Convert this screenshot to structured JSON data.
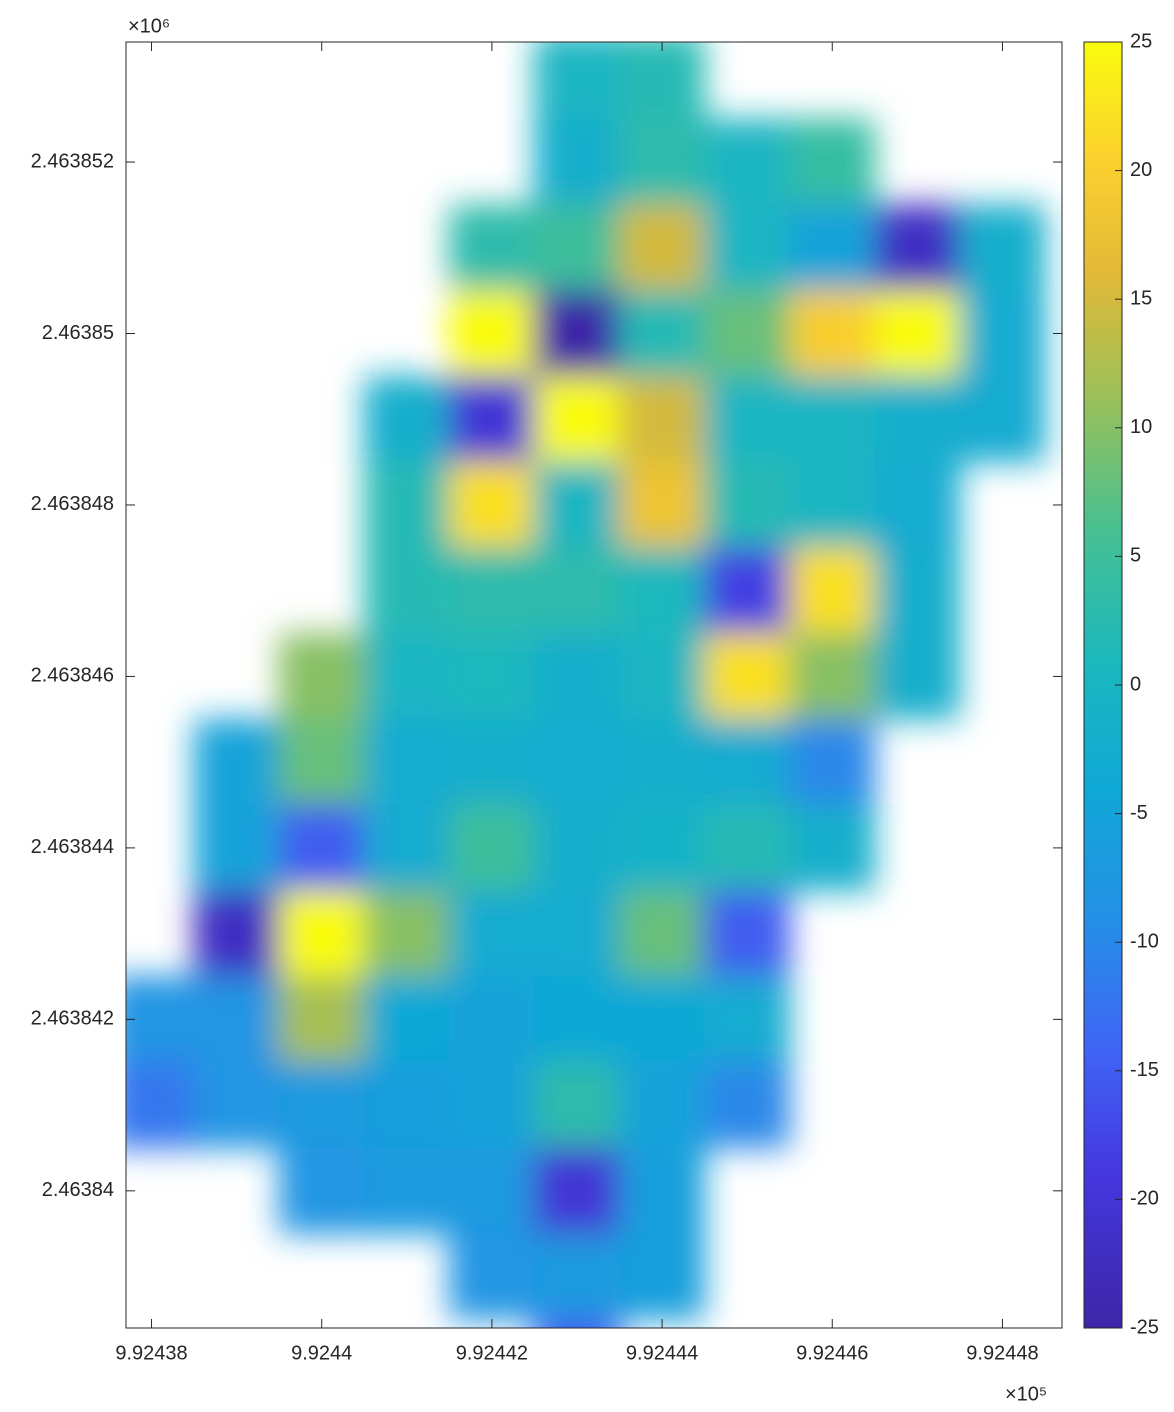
{
  "chart_data": {
    "type": "heatmap",
    "x_multiplier": "×10⁵",
    "y_multiplier": "×10⁶",
    "x": [
      9.92438,
      9.92439,
      9.9244,
      9.92441,
      9.92442,
      9.92443,
      9.92444,
      9.92445,
      9.92446,
      9.92447,
      9.92448,
      9.92449
    ],
    "y": [
      2.463853,
      2.463852,
      2.463851,
      2.46385,
      2.463849,
      2.463848,
      2.463847,
      2.463846,
      2.463845,
      2.463844,
      2.463843,
      2.463842,
      2.463841,
      2.46384,
      2.463839,
      2.463838
    ],
    "z": [
      [
        null,
        null,
        null,
        null,
        null,
        0,
        2,
        null,
        null,
        null,
        null,
        null
      ],
      [
        null,
        null,
        null,
        null,
        null,
        -2,
        3,
        0,
        4,
        null,
        null,
        null
      ],
      [
        null,
        null,
        null,
        null,
        3,
        5,
        15,
        0,
        -5,
        -22,
        -2,
        null
      ],
      [
        null,
        null,
        null,
        null,
        25,
        -25,
        2,
        8,
        20,
        25,
        -3,
        null
      ],
      [
        null,
        null,
        null,
        -2,
        -20,
        25,
        15,
        0,
        0,
        -2,
        -3,
        null
      ],
      [
        null,
        null,
        null,
        2,
        22,
        0,
        18,
        2,
        0,
        -3,
        null,
        null
      ],
      [
        null,
        null,
        null,
        2,
        3,
        3,
        1,
        -18,
        22,
        -2,
        null,
        null
      ],
      [
        null,
        null,
        10,
        0,
        1,
        -2,
        0,
        22,
        10,
        -2,
        null,
        null
      ],
      [
        null,
        -5,
        8,
        -3,
        -2,
        -3,
        -2,
        -3,
        -10,
        null,
        null,
        null
      ],
      [
        null,
        -5,
        -15,
        -3,
        5,
        -2,
        -1,
        2,
        -2,
        null,
        null,
        null
      ],
      [
        null,
        -22,
        25,
        10,
        -3,
        -3,
        8,
        -15,
        null,
        null,
        null,
        null
      ],
      [
        -8,
        -8,
        12,
        -4,
        -5,
        -4,
        -4,
        -3,
        null,
        null,
        null,
        null
      ],
      [
        -12,
        -8,
        -7,
        -6,
        -5,
        3,
        -5,
        -10,
        null,
        null,
        null,
        null
      ],
      [
        null,
        null,
        -8,
        -7,
        -7,
        -20,
        -6,
        null,
        null,
        null,
        null,
        null
      ],
      [
        null,
        null,
        null,
        null,
        -8,
        -7,
        -6,
        null,
        null,
        null,
        null,
        null
      ],
      [
        null,
        null,
        null,
        null,
        null,
        -15,
        null,
        null,
        null,
        null,
        null,
        null
      ]
    ],
    "xlim": [
      9.924377,
      9.924487
    ],
    "ylim": [
      2.4638384,
      2.4638534
    ],
    "xticks": [
      9.92438,
      9.9244,
      9.92442,
      9.92444,
      9.92446,
      9.92448
    ],
    "yticks": [
      2.463852,
      2.46385,
      2.463848,
      2.463846,
      2.463844,
      2.463842,
      2.46384
    ],
    "colormap": "parula",
    "clim": [
      -25,
      25
    ],
    "cticks": [
      25,
      20,
      15,
      10,
      5,
      0,
      -5,
      -10,
      -15,
      -20,
      -25
    ]
  }
}
